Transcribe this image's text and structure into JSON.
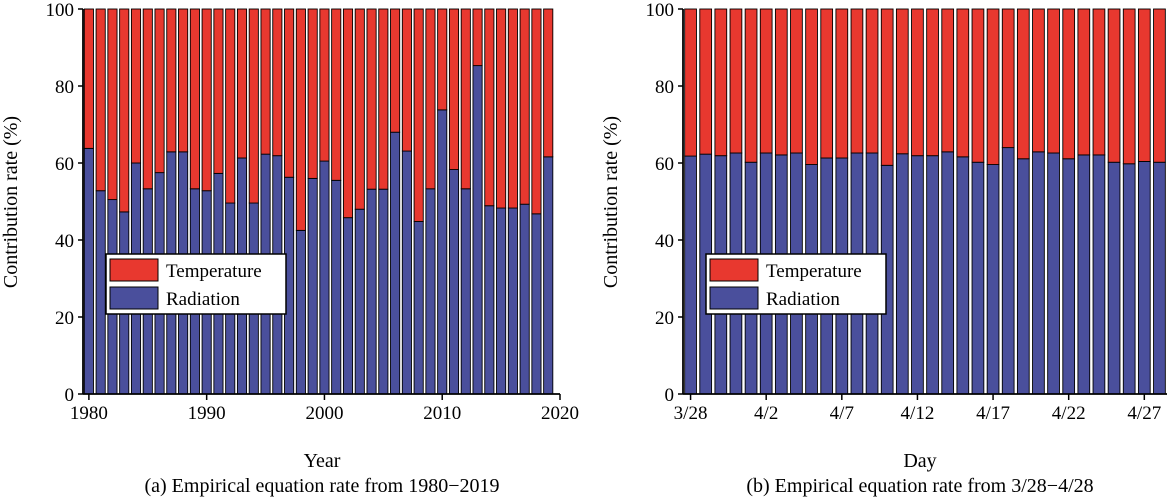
{
  "colors": {
    "temperature": "#e8382f",
    "radiation": "#4a4f9c",
    "axis": "#000000"
  },
  "chart_data": [
    {
      "type": "bar",
      "stacked": true,
      "ylabel": "Contribution rate (%)",
      "xlabel": "Year",
      "caption": "(a) Empirical equation rate from 1980−2019",
      "ylim": [
        0,
        100
      ],
      "yticks": [
        "0",
        "20",
        "40",
        "60",
        "80",
        "100"
      ],
      "xlim": [
        1979.5,
        2020
      ],
      "xtick_values": [
        1980,
        1990,
        2000,
        2010,
        2020
      ],
      "xtick_labels": [
        "1980",
        "1990",
        "2000",
        "2010",
        "2020"
      ],
      "legend_position": "center-left",
      "x": [
        1980,
        1981,
        1982,
        1983,
        1984,
        1985,
        1986,
        1987,
        1988,
        1989,
        1990,
        1991,
        1992,
        1993,
        1994,
        1995,
        1996,
        1997,
        1998,
        1999,
        2000,
        2001,
        2002,
        2003,
        2004,
        2005,
        2006,
        2007,
        2008,
        2009,
        2010,
        2011,
        2012,
        2013,
        2014,
        2015,
        2016,
        2017,
        2018,
        2019
      ],
      "series": [
        {
          "name": "Radiation",
          "values": [
            63.8,
            52.8,
            50.5,
            47.3,
            60,
            53.3,
            57.5,
            62.9,
            62.9,
            53.3,
            52.8,
            57.3,
            49.6,
            61.3,
            49.6,
            62.3,
            61.9,
            56.3,
            42.5,
            56,
            60.5,
            55.5,
            45.8,
            48,
            53.2,
            53.2,
            68,
            63.1,
            44.8,
            53.3,
            73.8,
            58.3,
            53.3,
            85.3,
            48.9,
            48.3,
            48.3,
            49.3,
            46.8,
            61.6
          ]
        },
        {
          "name": "Temperature",
          "values": [
            36.2,
            47.2,
            49.5,
            52.7,
            40,
            46.7,
            42.5,
            37.1,
            37.1,
            46.7,
            47.2,
            42.7,
            50.4,
            38.7,
            50.4,
            37.7,
            38.1,
            43.7,
            57.5,
            44,
            39.5,
            44.5,
            54.2,
            52,
            46.8,
            46.8,
            32,
            36.9,
            55.2,
            46.7,
            26.2,
            41.7,
            46.7,
            14.7,
            51.1,
            51.7,
            51.7,
            50.7,
            53.2,
            38.4
          ]
        }
      ]
    },
    {
      "type": "bar",
      "stacked": true,
      "ylabel": "Contribution rate (%)",
      "xlabel": "Day",
      "caption": "(b) Empirical equation rate from 3/28−4/28",
      "ylim": [
        0,
        100
      ],
      "yticks": [
        "0",
        "20",
        "40",
        "60",
        "80",
        "100"
      ],
      "legend_position": "center-left",
      "x": [
        "3/28",
        "3/29",
        "3/30",
        "3/31",
        "4/1",
        "4/2",
        "4/3",
        "4/4",
        "4/5",
        "4/6",
        "4/7",
        "4/8",
        "4/9",
        "4/10",
        "4/11",
        "4/12",
        "4/13",
        "4/14",
        "4/15",
        "4/16",
        "4/17",
        "4/18",
        "4/19",
        "4/20",
        "4/21",
        "4/22",
        "4/23",
        "4/24",
        "4/25",
        "4/26",
        "4/27",
        "4/28"
      ],
      "xtick_labels": [
        "3/28",
        "4/2",
        "4/7",
        "4/12",
        "4/17",
        "4/22",
        "4/27"
      ],
      "series": [
        {
          "name": "Radiation",
          "values": [
            61.8,
            62.3,
            61.9,
            62.6,
            60.2,
            62.6,
            62.1,
            62.6,
            59.6,
            61.3,
            61.3,
            62.6,
            62.6,
            59.4,
            62.4,
            61.9,
            61.9,
            62.9,
            61.6,
            60.2,
            59.6,
            64,
            61.1,
            62.9,
            62.6,
            61.1,
            62.1,
            62.1,
            60.2,
            59.8,
            60.4,
            60.2
          ]
        },
        {
          "name": "Temperature",
          "values": [
            38.2,
            37.7,
            38.1,
            37.4,
            39.8,
            37.4,
            37.9,
            37.4,
            40.4,
            38.7,
            38.7,
            37.4,
            37.4,
            40.6,
            37.6,
            38.1,
            38.1,
            37.1,
            38.4,
            39.8,
            40.4,
            36,
            38.9,
            37.1,
            37.4,
            38.9,
            37.9,
            37.9,
            39.8,
            40.2,
            39.6,
            39.8
          ]
        }
      ]
    }
  ]
}
